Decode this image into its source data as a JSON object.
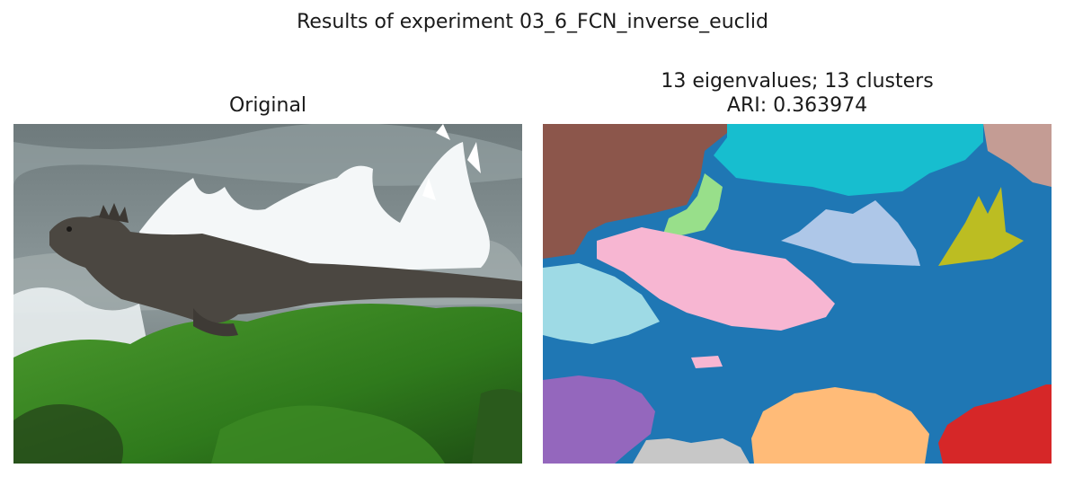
{
  "figure": {
    "title": "Results of experiment 03_6_FCN_inverse_euclid"
  },
  "left_panel": {
    "title": "Original",
    "image_description_icon": "iguana-photo"
  },
  "right_panel": {
    "title_line1": "13 eigenvalues; 13 clusters",
    "title_line2": "ARI: 0.363974",
    "cluster_colors": [
      "#1f77b4",
      "#8c564b",
      "#17becf",
      "#c49c94",
      "#98df8a",
      "#aec7e8",
      "#bcbd22",
      "#f7b6d2",
      "#9edae5",
      "#9467bd",
      "#ffbb78",
      "#d62728",
      "#c7c7c7"
    ]
  }
}
